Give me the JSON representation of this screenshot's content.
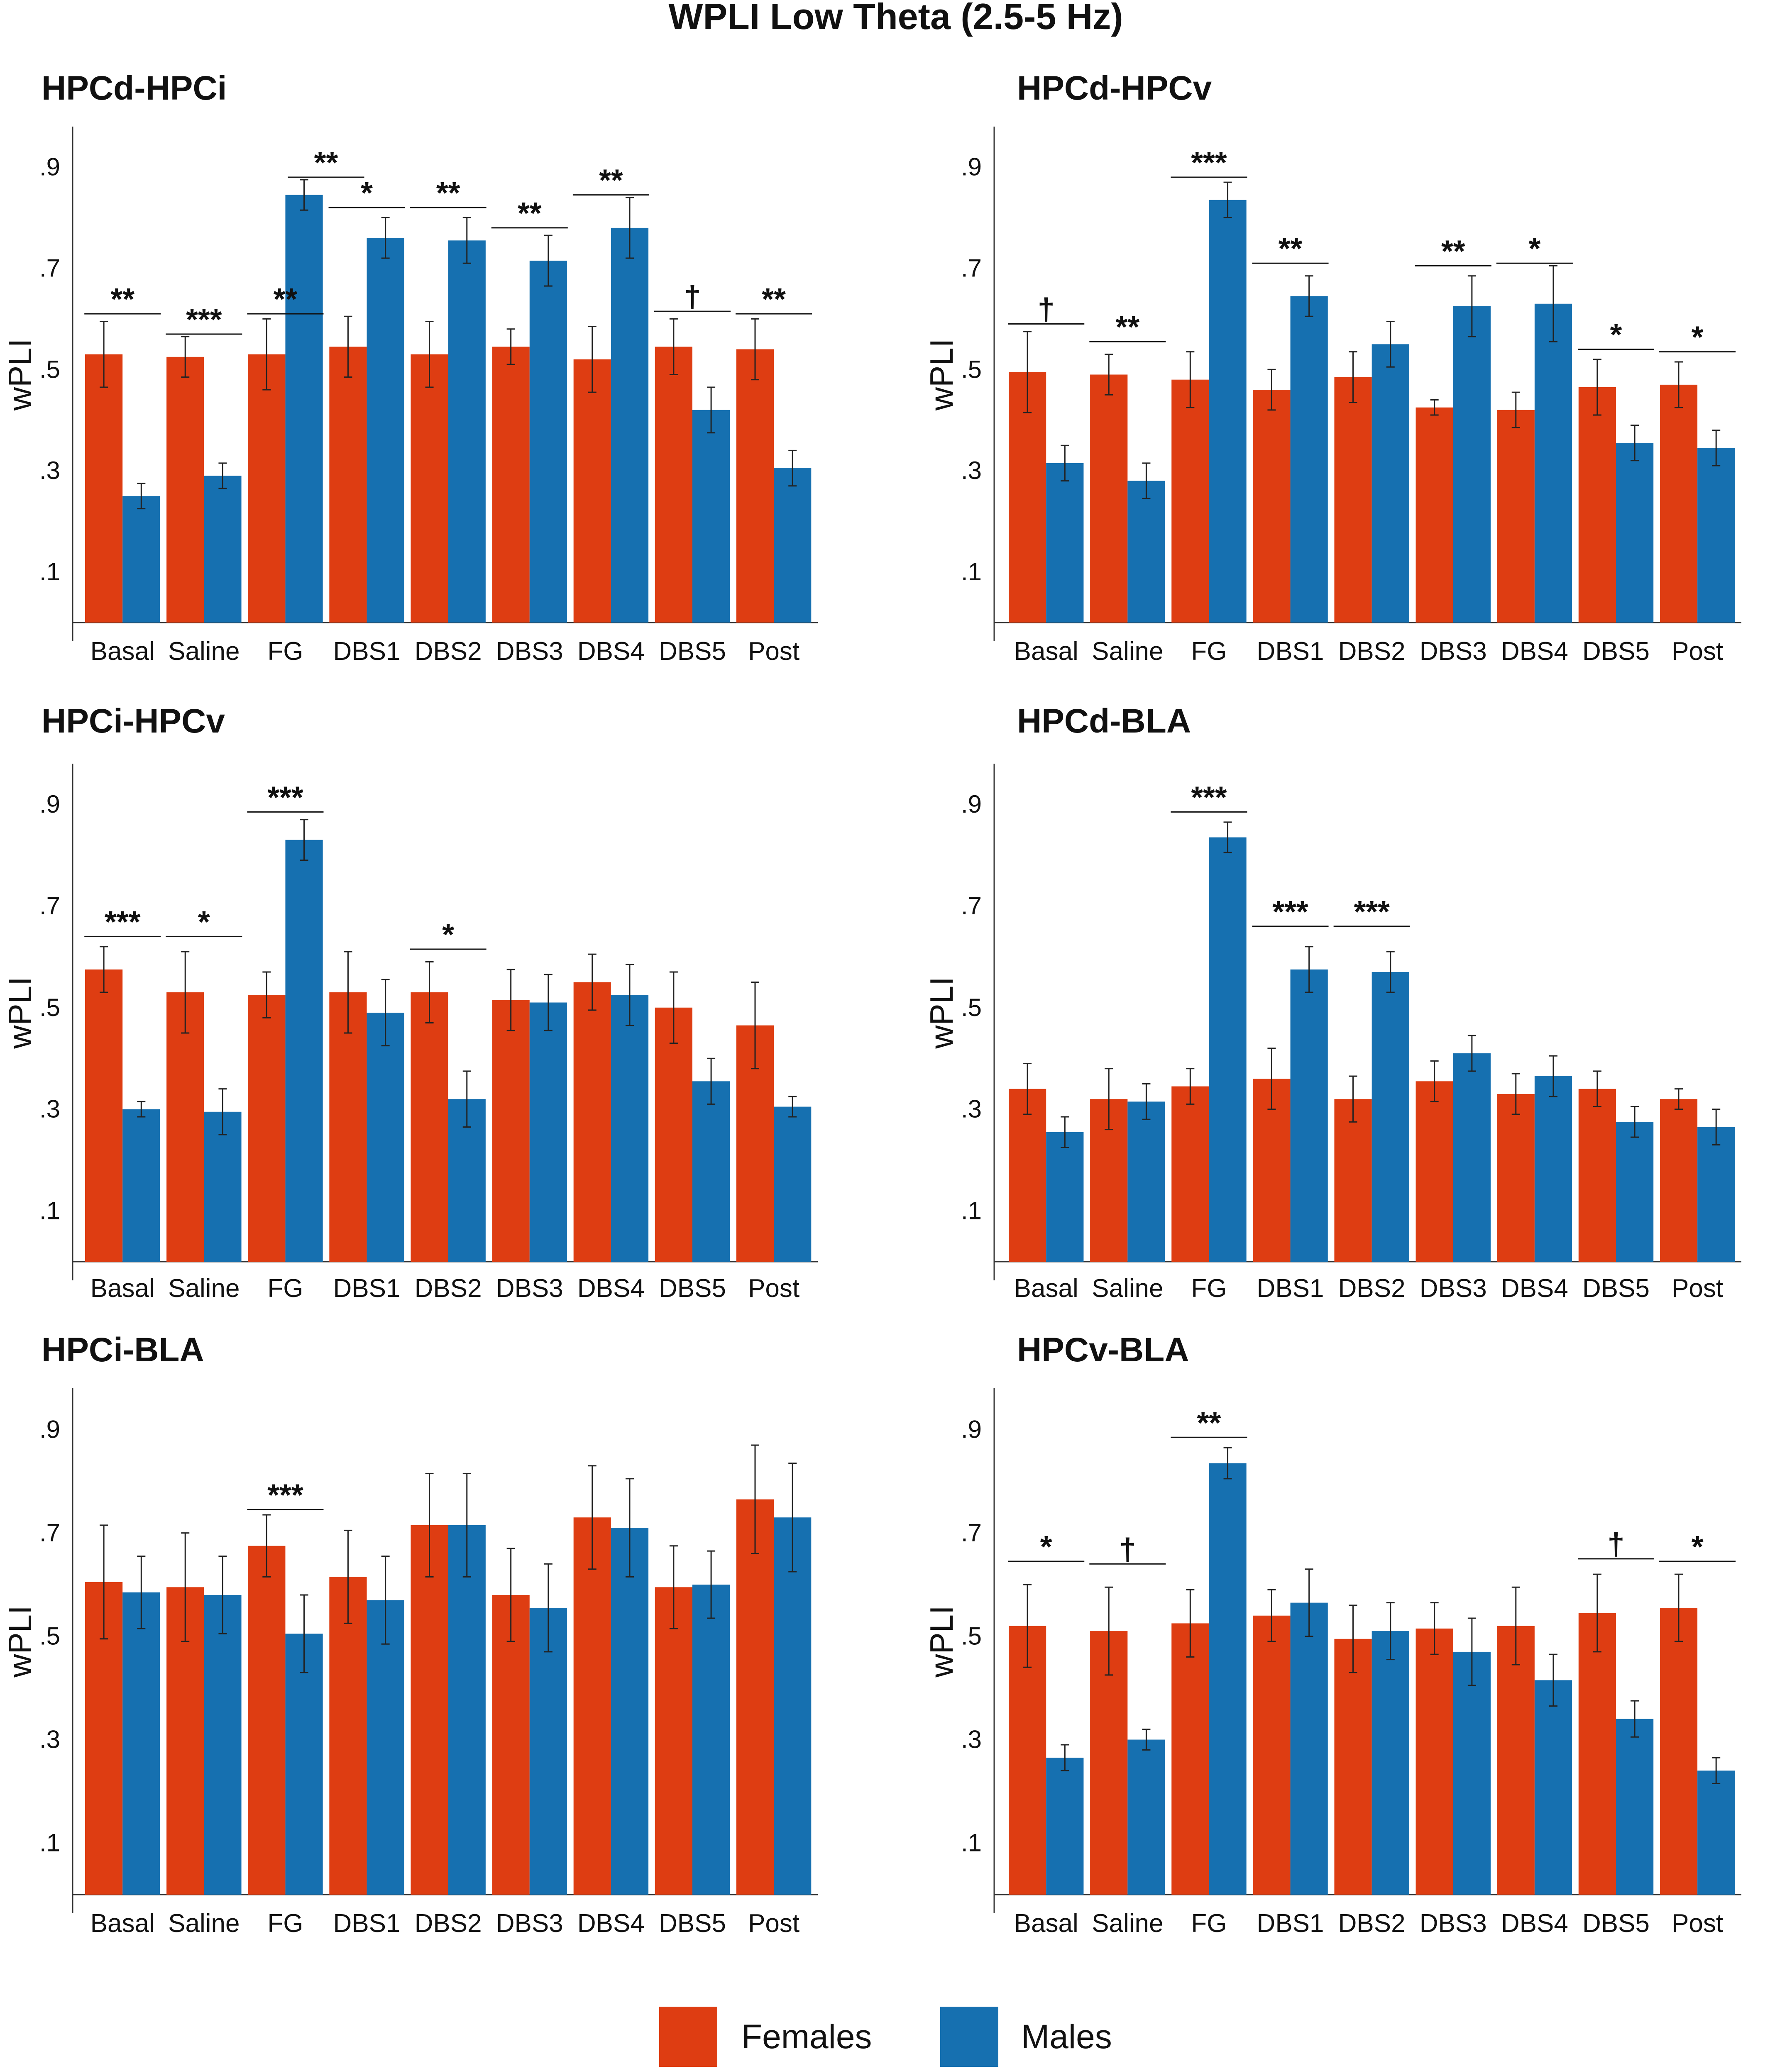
{
  "title": "WPLI Low Theta (2.5-5 Hz)",
  "colors": {
    "females": "#de3d12",
    "males": "#1670b0",
    "axis": "#333333"
  },
  "legend": [
    {
      "label": "Females",
      "color": "#de3d12"
    },
    {
      "label": "Males",
      "color": "#1670b0"
    }
  ],
  "chart_data": [
    {
      "type": "bar",
      "title": "HPCd-HPCi",
      "ylabel": "wPLI",
      "ylim": [
        0,
        0.98
      ],
      "yticks": [
        ".1",
        ".3",
        ".5",
        ".7",
        ".9"
      ],
      "categories": [
        "Basal",
        "Saline",
        "FG",
        "DBS1",
        "DBS2",
        "DBS3",
        "DBS4",
        "DBS5",
        "Post"
      ],
      "series": [
        {
          "name": "Females",
          "values": [
            0.53,
            0.525,
            0.53,
            0.545,
            0.53,
            0.545,
            0.52,
            0.545,
            0.54
          ],
          "errors": [
            0.065,
            0.04,
            0.07,
            0.06,
            0.065,
            0.035,
            0.065,
            0.055,
            0.06
          ]
        },
        {
          "name": "Males",
          "values": [
            0.25,
            0.29,
            0.845,
            0.76,
            0.755,
            0.715,
            0.78,
            0.42,
            0.305
          ],
          "errors": [
            0.025,
            0.025,
            0.03,
            0.04,
            0.045,
            0.05,
            0.06,
            0.045,
            0.035
          ]
        }
      ],
      "significance": [
        {
          "category": 0,
          "label": "**",
          "y": 0.61
        },
        {
          "category": 1,
          "label": "***",
          "y": 0.57
        },
        {
          "category": 2,
          "label": "**",
          "y": 0.61
        },
        {
          "category": 3,
          "label": "*",
          "y": 0.82
        },
        {
          "category": 2.5,
          "label": "**",
          "y": 0.88
        },
        {
          "category": 4,
          "label": "**",
          "y": 0.82
        },
        {
          "category": 5,
          "label": "**",
          "y": 0.78
        },
        {
          "category": 6,
          "label": "**",
          "y": 0.845
        },
        {
          "category": 7,
          "label": "†",
          "y": 0.615
        },
        {
          "category": 8,
          "label": "**",
          "y": 0.61
        }
      ]
    },
    {
      "type": "bar",
      "title": "HPCd-HPCv",
      "ylabel": "wPLI",
      "ylim": [
        0,
        0.98
      ],
      "yticks": [
        ".1",
        ".3",
        ".5",
        ".7",
        ".9"
      ],
      "categories": [
        "Basal",
        "Saline",
        "FG",
        "DBS1",
        "DBS2",
        "DBS3",
        "DBS4",
        "DBS5",
        "Post"
      ],
      "series": [
        {
          "name": "Females",
          "values": [
            0.495,
            0.49,
            0.48,
            0.46,
            0.485,
            0.425,
            0.42,
            0.465,
            0.47
          ],
          "errors": [
            0.08,
            0.04,
            0.055,
            0.04,
            0.05,
            0.015,
            0.035,
            0.055,
            0.045
          ]
        },
        {
          "name": "Males",
          "values": [
            0.315,
            0.28,
            0.835,
            0.645,
            0.55,
            0.625,
            0.63,
            0.355,
            0.345
          ],
          "errors": [
            0.035,
            0.035,
            0.035,
            0.04,
            0.045,
            0.06,
            0.075,
            0.035,
            0.035
          ]
        }
      ],
      "significance": [
        {
          "category": 0,
          "label": "†",
          "y": 0.59
        },
        {
          "category": 1,
          "label": "**",
          "y": 0.555
        },
        {
          "category": 2,
          "label": "***",
          "y": 0.88
        },
        {
          "category": 3,
          "label": "**",
          "y": 0.71
        },
        {
          "category": 5,
          "label": "**",
          "y": 0.705
        },
        {
          "category": 6,
          "label": "*",
          "y": 0.71
        },
        {
          "category": 7,
          "label": "*",
          "y": 0.54
        },
        {
          "category": 8,
          "label": "*",
          "y": 0.535
        }
      ]
    },
    {
      "type": "bar",
      "title": "HPCi-HPCv",
      "ylabel": "wPLI",
      "ylim": [
        0,
        0.98
      ],
      "yticks": [
        ".1",
        ".3",
        ".5",
        ".7",
        ".9"
      ],
      "categories": [
        "Basal",
        "Saline",
        "FG",
        "DBS1",
        "DBS2",
        "DBS3",
        "DBS4",
        "DBS5",
        "Post"
      ],
      "series": [
        {
          "name": "Females",
          "values": [
            0.575,
            0.53,
            0.525,
            0.53,
            0.53,
            0.515,
            0.55,
            0.5,
            0.465
          ],
          "errors": [
            0.045,
            0.08,
            0.045,
            0.08,
            0.06,
            0.06,
            0.055,
            0.07,
            0.085
          ]
        },
        {
          "name": "Males",
          "values": [
            0.3,
            0.295,
            0.83,
            0.49,
            0.32,
            0.51,
            0.525,
            0.355,
            0.305
          ],
          "errors": [
            0.015,
            0.045,
            0.04,
            0.065,
            0.055,
            0.055,
            0.06,
            0.045,
            0.02
          ]
        }
      ],
      "significance": [
        {
          "category": 0,
          "label": "***",
          "y": 0.64
        },
        {
          "category": 1,
          "label": "*",
          "y": 0.64
        },
        {
          "category": 2,
          "label": "***",
          "y": 0.885
        },
        {
          "category": 4,
          "label": "*",
          "y": 0.615
        }
      ]
    },
    {
      "type": "bar",
      "title": "HPCd-BLA",
      "ylabel": "wPLI",
      "ylim": [
        0,
        0.98
      ],
      "yticks": [
        ".1",
        ".3",
        ".5",
        ".7",
        ".9"
      ],
      "categories": [
        "Basal",
        "Saline",
        "FG",
        "DBS1",
        "DBS2",
        "DBS3",
        "DBS4",
        "DBS5",
        "Post"
      ],
      "series": [
        {
          "name": "Females",
          "values": [
            0.34,
            0.32,
            0.345,
            0.36,
            0.32,
            0.355,
            0.33,
            0.34,
            0.32
          ],
          "errors": [
            0.05,
            0.06,
            0.035,
            0.06,
            0.045,
            0.04,
            0.04,
            0.035,
            0.02
          ]
        },
        {
          "name": "Males",
          "values": [
            0.255,
            0.315,
            0.835,
            0.575,
            0.57,
            0.41,
            0.365,
            0.275,
            0.265
          ],
          "errors": [
            0.03,
            0.035,
            0.03,
            0.045,
            0.04,
            0.035,
            0.04,
            0.03,
            0.035
          ]
        }
      ],
      "significance": [
        {
          "category": 2,
          "label": "***",
          "y": 0.885
        },
        {
          "category": 3,
          "label": "***",
          "y": 0.66
        },
        {
          "category": 4,
          "label": "***",
          "y": 0.66
        }
      ]
    },
    {
      "type": "bar",
      "title": "HPCi-BLA",
      "ylabel": "wPLI",
      "ylim": [
        0,
        0.98
      ],
      "yticks": [
        ".1",
        ".3",
        ".5",
        ".7",
        ".9"
      ],
      "categories": [
        "Basal",
        "Saline",
        "FG",
        "DBS1",
        "DBS2",
        "DBS3",
        "DBS4",
        "DBS5",
        "Post"
      ],
      "series": [
        {
          "name": "Females",
          "values": [
            0.605,
            0.595,
            0.675,
            0.615,
            0.715,
            0.58,
            0.73,
            0.595,
            0.765
          ],
          "errors": [
            0.11,
            0.105,
            0.06,
            0.09,
            0.1,
            0.09,
            0.1,
            0.08,
            0.105
          ]
        },
        {
          "name": "Males",
          "values": [
            0.585,
            0.58,
            0.505,
            0.57,
            0.715,
            0.555,
            0.71,
            0.6,
            0.73
          ],
          "errors": [
            0.07,
            0.075,
            0.075,
            0.085,
            0.1,
            0.085,
            0.095,
            0.065,
            0.105
          ]
        }
      ],
      "significance": [
        {
          "category": 2,
          "label": "***",
          "y": 0.745
        }
      ]
    },
    {
      "type": "bar",
      "title": "HPCv-BLA",
      "ylabel": "wPLI",
      "ylim": [
        0,
        0.98
      ],
      "yticks": [
        ".1",
        ".3",
        ".5",
        ".7",
        ".9"
      ],
      "categories": [
        "Basal",
        "Saline",
        "FG",
        "DBS1",
        "DBS2",
        "DBS3",
        "DBS4",
        "DBS5",
        "Post"
      ],
      "series": [
        {
          "name": "Females",
          "values": [
            0.52,
            0.51,
            0.525,
            0.54,
            0.495,
            0.515,
            0.52,
            0.545,
            0.555
          ],
          "errors": [
            0.08,
            0.085,
            0.065,
            0.05,
            0.065,
            0.05,
            0.075,
            0.075,
            0.065
          ]
        },
        {
          "name": "Males",
          "values": [
            0.265,
            0.3,
            0.835,
            0.565,
            0.51,
            0.47,
            0.415,
            0.34,
            0.24
          ],
          "errors": [
            0.025,
            0.02,
            0.03,
            0.065,
            0.055,
            0.065,
            0.05,
            0.035,
            0.025
          ]
        }
      ],
      "significance": [
        {
          "category": 0,
          "label": "*",
          "y": 0.645
        },
        {
          "category": 1,
          "label": "†",
          "y": 0.64
        },
        {
          "category": 2,
          "label": "**",
          "y": 0.885
        },
        {
          "category": 7,
          "label": "†",
          "y": 0.65
        },
        {
          "category": 8,
          "label": "*",
          "y": 0.645
        }
      ]
    }
  ]
}
